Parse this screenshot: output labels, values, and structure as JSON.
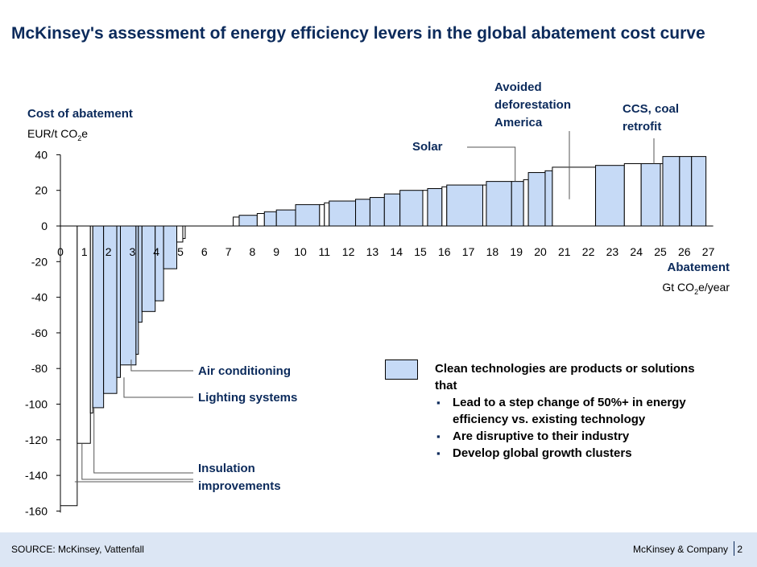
{
  "title": "McKinsey's assessment of energy efficiency levers in the global abatement cost curve",
  "y_axis": {
    "label_line1": "Cost of abatement",
    "label_line2_pre": "EUR/t CO",
    "label_sub": "2",
    "label_line2_post": "e"
  },
  "x_axis": {
    "label_line1": "Abatement",
    "label_line2_pre": "Gt CO",
    "label_sub": "2",
    "label_line2_post": "e/year"
  },
  "annotations": {
    "solar": "Solar",
    "avoided_deforestation": "Avoided deforestation America",
    "ccs": "CCS, coal retrofit",
    "air_conditioning": "Air conditioning",
    "lighting": "Lighting systems",
    "insulation": "Insulation improvements"
  },
  "legend": {
    "intro": "Clean technologies are products or solutions that",
    "bullets": [
      "Lead to a step change of 50%+ in energy efficiency vs. existing technology",
      "Are disruptive to their industry",
      "Develop global growth clusters"
    ]
  },
  "footer": {
    "source": "SOURCE: McKinsey, Vattenfall",
    "company": "McKinsey & Company",
    "page": "2"
  },
  "colors": {
    "clean": "#c6daf6",
    "other": "#ffffff",
    "title": "#0b2a5b",
    "outline": "#000000"
  },
  "chart_data": {
    "type": "bar",
    "subtype": "marginal-abatement-cost-curve",
    "x_ticks": [
      "0",
      "1",
      "2",
      "3",
      "4",
      "5",
      "6",
      "7",
      "8",
      "9",
      "10",
      "11",
      "12",
      "13",
      "14",
      "15",
      "16",
      "17",
      "18",
      "19",
      "20",
      "21",
      "22",
      "23",
      "24",
      "25",
      "26",
      "27"
    ],
    "y_ticks": [
      "40",
      "20",
      "0",
      "-20",
      "-40",
      "-60",
      "-80",
      "-100",
      "-120",
      "-140",
      "-160"
    ],
    "xlim": [
      0,
      27
    ],
    "ylim": [
      -160,
      40
    ],
    "segments": [
      {
        "x0": 0.0,
        "x1": 0.7,
        "y": -157,
        "clean": false
      },
      {
        "x0": 0.7,
        "x1": 1.25,
        "y": -122,
        "clean": false
      },
      {
        "x0": 1.25,
        "x1": 1.35,
        "y": -105,
        "clean": false
      },
      {
        "x0": 1.35,
        "x1": 1.8,
        "y": -102,
        "clean": true
      },
      {
        "x0": 1.8,
        "x1": 2.35,
        "y": -94,
        "clean": true
      },
      {
        "x0": 2.35,
        "x1": 2.5,
        "y": -85,
        "clean": true
      },
      {
        "x0": 2.5,
        "x1": 3.15,
        "y": -78,
        "clean": true
      },
      {
        "x0": 3.15,
        "x1": 3.25,
        "y": -72,
        "clean": true
      },
      {
        "x0": 3.25,
        "x1": 3.4,
        "y": -54,
        "clean": true
      },
      {
        "x0": 3.4,
        "x1": 3.95,
        "y": -48,
        "clean": true
      },
      {
        "x0": 3.95,
        "x1": 4.3,
        "y": -42,
        "clean": true
      },
      {
        "x0": 4.3,
        "x1": 4.85,
        "y": -24,
        "clean": true
      },
      {
        "x0": 4.85,
        "x1": 5.1,
        "y": -9,
        "clean": false
      },
      {
        "x0": 5.1,
        "x1": 5.2,
        "y": -7,
        "clean": false
      },
      {
        "x0": 7.2,
        "x1": 7.45,
        "y": 5,
        "clean": false
      },
      {
        "x0": 7.45,
        "x1": 8.2,
        "y": 6,
        "clean": true
      },
      {
        "x0": 8.2,
        "x1": 8.5,
        "y": 7,
        "clean": false
      },
      {
        "x0": 8.5,
        "x1": 9.0,
        "y": 8,
        "clean": true
      },
      {
        "x0": 9.0,
        "x1": 9.8,
        "y": 9,
        "clean": true
      },
      {
        "x0": 9.8,
        "x1": 10.8,
        "y": 12,
        "clean": true
      },
      {
        "x0": 10.8,
        "x1": 11.0,
        "y": 12,
        "clean": false
      },
      {
        "x0": 11.0,
        "x1": 11.2,
        "y": 13,
        "clean": false
      },
      {
        "x0": 11.2,
        "x1": 12.3,
        "y": 14,
        "clean": true
      },
      {
        "x0": 12.3,
        "x1": 12.9,
        "y": 15,
        "clean": true
      },
      {
        "x0": 12.9,
        "x1": 13.5,
        "y": 16,
        "clean": true
      },
      {
        "x0": 13.5,
        "x1": 14.15,
        "y": 18,
        "clean": true
      },
      {
        "x0": 14.15,
        "x1": 15.1,
        "y": 20,
        "clean": true
      },
      {
        "x0": 15.1,
        "x1": 15.3,
        "y": 20,
        "clean": false
      },
      {
        "x0": 15.3,
        "x1": 15.9,
        "y": 21,
        "clean": true
      },
      {
        "x0": 15.9,
        "x1": 16.1,
        "y": 22,
        "clean": false
      },
      {
        "x0": 16.1,
        "x1": 17.6,
        "y": 23,
        "clean": true
      },
      {
        "x0": 17.6,
        "x1": 17.75,
        "y": 23,
        "clean": false
      },
      {
        "x0": 17.75,
        "x1": 18.8,
        "y": 25,
        "clean": true
      },
      {
        "x0": 18.8,
        "x1": 19.3,
        "y": 25,
        "clean": true
      },
      {
        "x0": 19.3,
        "x1": 19.5,
        "y": 26,
        "clean": false
      },
      {
        "x0": 19.5,
        "x1": 20.2,
        "y": 30,
        "clean": true
      },
      {
        "x0": 20.2,
        "x1": 20.5,
        "y": 31,
        "clean": true
      },
      {
        "x0": 20.5,
        "x1": 22.3,
        "y": 33,
        "clean": false
      },
      {
        "x0": 22.3,
        "x1": 23.5,
        "y": 34,
        "clean": true
      },
      {
        "x0": 23.5,
        "x1": 24.2,
        "y": 35,
        "clean": false
      },
      {
        "x0": 24.2,
        "x1": 25.0,
        "y": 35,
        "clean": true
      },
      {
        "x0": 25.0,
        "x1": 25.1,
        "y": 35,
        "clean": false
      },
      {
        "x0": 25.1,
        "x1": 25.8,
        "y": 39,
        "clean": true
      },
      {
        "x0": 25.8,
        "x1": 26.3,
        "y": 39,
        "clean": true
      },
      {
        "x0": 26.3,
        "x1": 26.9,
        "y": 39,
        "clean": true
      }
    ]
  }
}
